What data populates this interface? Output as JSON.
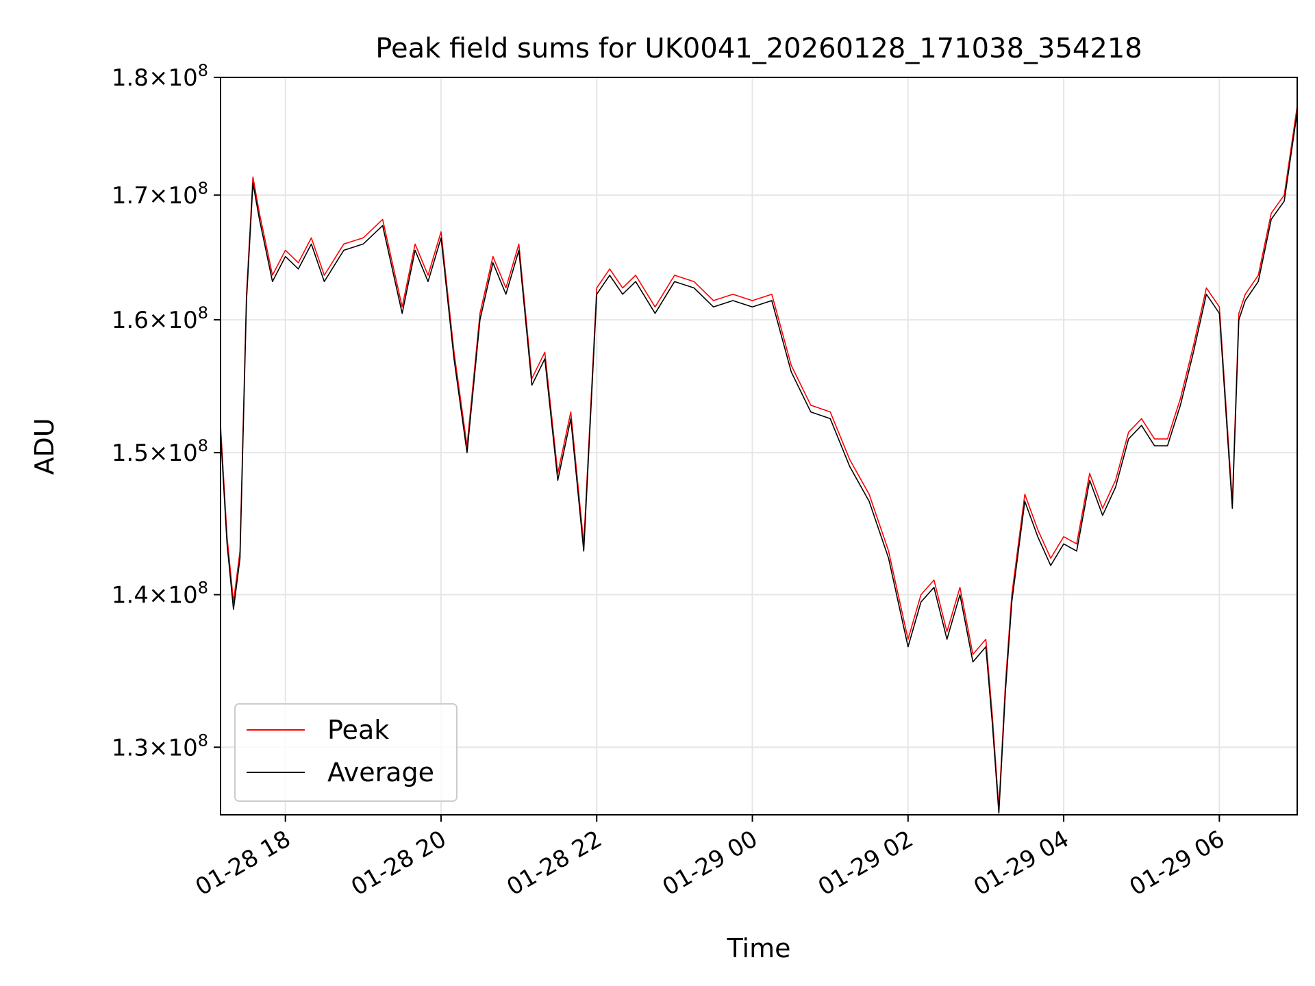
{
  "chart_data": {
    "type": "line",
    "title": "Peak field sums for UK0041_20260128_171038_354218",
    "xlabel": "Time",
    "ylabel": "ADU",
    "x_type": "datetime",
    "xlim": [
      "2026-01-28T17:10",
      "2026-01-29T07:00"
    ],
    "ylim": [
      125800000,
      180000000
    ],
    "y_scale": "log",
    "grid": true,
    "legend_position": "lower-left",
    "x_ticks": [
      {
        "value": "2026-01-28T18:00",
        "label": "01-28 18"
      },
      {
        "value": "2026-01-28T20:00",
        "label": "01-28 20"
      },
      {
        "value": "2026-01-28T22:00",
        "label": "01-28 22"
      },
      {
        "value": "2026-01-29T00:00",
        "label": "01-29 00"
      },
      {
        "value": "2026-01-29T02:00",
        "label": "01-29 02"
      },
      {
        "value": "2026-01-29T04:00",
        "label": "01-29 04"
      },
      {
        "value": "2026-01-29T06:00",
        "label": "01-29 06"
      }
    ],
    "y_ticks": [
      {
        "value": 130000000,
        "mantissa": "1.3",
        "exponent": "8"
      },
      {
        "value": 140000000,
        "mantissa": "1.4",
        "exponent": "8"
      },
      {
        "value": 150000000,
        "mantissa": "1.5",
        "exponent": "8"
      },
      {
        "value": 160000000,
        "mantissa": "1.6",
        "exponent": "8"
      },
      {
        "value": 170000000,
        "mantissa": "1.7",
        "exponent": "8"
      },
      {
        "value": 180000000,
        "mantissa": "1.8",
        "exponent": "8"
      }
    ],
    "series": [
      {
        "name": "Peak",
        "color": "#ff0000",
        "x": [
          "2026-01-28T17:10",
          "2026-01-28T17:15",
          "2026-01-28T17:20",
          "2026-01-28T17:25",
          "2026-01-28T17:30",
          "2026-01-28T17:35",
          "2026-01-28T17:40",
          "2026-01-28T17:45",
          "2026-01-28T17:50",
          "2026-01-28T18:00",
          "2026-01-28T18:10",
          "2026-01-28T18:20",
          "2026-01-28T18:30",
          "2026-01-28T18:45",
          "2026-01-28T19:00",
          "2026-01-28T19:15",
          "2026-01-28T19:30",
          "2026-01-28T19:40",
          "2026-01-28T19:50",
          "2026-01-28T20:00",
          "2026-01-28T20:10",
          "2026-01-28T20:20",
          "2026-01-28T20:30",
          "2026-01-28T20:40",
          "2026-01-28T20:50",
          "2026-01-28T21:00",
          "2026-01-28T21:10",
          "2026-01-28T21:20",
          "2026-01-28T21:30",
          "2026-01-28T21:40",
          "2026-01-28T21:50",
          "2026-01-28T22:00",
          "2026-01-28T22:10",
          "2026-01-28T22:20",
          "2026-01-28T22:30",
          "2026-01-28T22:45",
          "2026-01-28T23:00",
          "2026-01-28T23:15",
          "2026-01-28T23:30",
          "2026-01-28T23:45",
          "2026-01-29T00:00",
          "2026-01-29T00:15",
          "2026-01-29T00:30",
          "2026-01-29T00:45",
          "2026-01-29T01:00",
          "2026-01-29T01:15",
          "2026-01-29T01:30",
          "2026-01-29T01:45",
          "2026-01-29T02:00",
          "2026-01-29T02:10",
          "2026-01-29T02:20",
          "2026-01-29T02:30",
          "2026-01-29T02:40",
          "2026-01-29T02:50",
          "2026-01-29T03:00",
          "2026-01-29T03:05",
          "2026-01-29T03:10",
          "2026-01-29T03:15",
          "2026-01-29T03:20",
          "2026-01-29T03:30",
          "2026-01-29T03:40",
          "2026-01-29T03:50",
          "2026-01-29T04:00",
          "2026-01-29T04:10",
          "2026-01-29T04:20",
          "2026-01-29T04:30",
          "2026-01-29T04:40",
          "2026-01-29T04:50",
          "2026-01-29T05:00",
          "2026-01-29T05:10",
          "2026-01-29T05:20",
          "2026-01-29T05:30",
          "2026-01-29T05:40",
          "2026-01-29T05:50",
          "2026-01-29T06:00",
          "2026-01-29T06:10",
          "2026-01-29T06:15",
          "2026-01-29T06:20",
          "2026-01-29T06:30",
          "2026-01-29T06:40",
          "2026-01-29T06:50",
          "2026-01-29T07:00"
        ],
        "values": [
          152000000,
          144000000,
          139500000,
          143000000,
          162000000,
          171500000,
          168500000,
          166000000,
          163500000,
          165500000,
          164500000,
          166500000,
          163500000,
          166000000,
          166500000,
          168000000,
          161000000,
          166000000,
          163500000,
          167000000,
          157500000,
          150500000,
          160500000,
          165000000,
          162500000,
          166000000,
          155500000,
          157500000,
          148500000,
          153000000,
          143500000,
          162500000,
          164000000,
          162500000,
          163500000,
          161000000,
          163500000,
          163000000,
          161500000,
          162000000,
          161500000,
          162000000,
          156500000,
          153500000,
          153000000,
          149500000,
          147000000,
          143000000,
          137000000,
          140000000,
          141000000,
          137500000,
          140500000,
          136000000,
          137000000,
          132000000,
          126200000,
          134000000,
          140000000,
          147000000,
          144500000,
          142500000,
          144000000,
          143500000,
          148500000,
          146000000,
          148000000,
          151500000,
          152500000,
          151000000,
          151000000,
          154000000,
          158000000,
          162500000,
          161000000,
          146500000,
          160500000,
          162000000,
          163500000,
          168500000,
          170000000,
          177500000
        ]
      },
      {
        "name": "Average",
        "color": "#000000",
        "x": [
          "2026-01-28T17:10",
          "2026-01-28T17:15",
          "2026-01-28T17:20",
          "2026-01-28T17:25",
          "2026-01-28T17:30",
          "2026-01-28T17:35",
          "2026-01-28T17:40",
          "2026-01-28T17:45",
          "2026-01-28T17:50",
          "2026-01-28T18:00",
          "2026-01-28T18:10",
          "2026-01-28T18:20",
          "2026-01-28T18:30",
          "2026-01-28T18:45",
          "2026-01-28T19:00",
          "2026-01-28T19:15",
          "2026-01-28T19:30",
          "2026-01-28T19:40",
          "2026-01-28T19:50",
          "2026-01-28T20:00",
          "2026-01-28T20:10",
          "2026-01-28T20:20",
          "2026-01-28T20:30",
          "2026-01-28T20:40",
          "2026-01-28T20:50",
          "2026-01-28T21:00",
          "2026-01-28T21:10",
          "2026-01-28T21:20",
          "2026-01-28T21:30",
          "2026-01-28T21:40",
          "2026-01-28T21:50",
          "2026-01-28T22:00",
          "2026-01-28T22:10",
          "2026-01-28T22:20",
          "2026-01-28T22:30",
          "2026-01-28T22:45",
          "2026-01-28T23:00",
          "2026-01-28T23:15",
          "2026-01-28T23:30",
          "2026-01-28T23:45",
          "2026-01-29T00:00",
          "2026-01-29T00:15",
          "2026-01-29T00:30",
          "2026-01-29T00:45",
          "2026-01-29T01:00",
          "2026-01-29T01:15",
          "2026-01-29T01:30",
          "2026-01-29T01:45",
          "2026-01-29T02:00",
          "2026-01-29T02:10",
          "2026-01-29T02:20",
          "2026-01-29T02:30",
          "2026-01-29T02:40",
          "2026-01-29T02:50",
          "2026-01-29T03:00",
          "2026-01-29T03:05",
          "2026-01-29T03:10",
          "2026-01-29T03:15",
          "2026-01-29T03:20",
          "2026-01-29T03:30",
          "2026-01-29T03:40",
          "2026-01-29T03:50",
          "2026-01-29T04:00",
          "2026-01-29T04:10",
          "2026-01-29T04:20",
          "2026-01-29T04:30",
          "2026-01-29T04:40",
          "2026-01-29T04:50",
          "2026-01-29T05:00",
          "2026-01-29T05:10",
          "2026-01-29T05:20",
          "2026-01-29T05:30",
          "2026-01-29T05:40",
          "2026-01-29T05:50",
          "2026-01-29T06:00",
          "2026-01-29T06:10",
          "2026-01-29T06:15",
          "2026-01-29T06:20",
          "2026-01-29T06:30",
          "2026-01-29T06:40",
          "2026-01-29T06:50",
          "2026-01-29T07:00"
        ],
        "values": [
          151500000,
          143500000,
          139000000,
          142500000,
          161500000,
          171000000,
          168000000,
          165500000,
          163000000,
          165000000,
          164000000,
          166000000,
          163000000,
          165500000,
          166000000,
          167500000,
          160500000,
          165500000,
          163000000,
          166500000,
          157000000,
          150000000,
          160000000,
          164500000,
          162000000,
          165500000,
          155000000,
          157000000,
          148000000,
          152500000,
          143000000,
          162000000,
          163500000,
          162000000,
          163000000,
          160500000,
          163000000,
          162500000,
          161000000,
          161500000,
          161000000,
          161500000,
          156000000,
          153000000,
          152500000,
          149000000,
          146500000,
          142500000,
          136500000,
          139500000,
          140500000,
          137000000,
          140000000,
          135500000,
          136500000,
          131500000,
          125900000,
          133500000,
          139500000,
          146500000,
          144000000,
          142000000,
          143500000,
          143000000,
          148000000,
          145500000,
          147500000,
          151000000,
          152000000,
          150500000,
          150500000,
          153500000,
          157500000,
          162000000,
          160500000,
          146000000,
          160000000,
          161500000,
          163000000,
          168000000,
          169500000,
          177000000
        ]
      }
    ]
  }
}
